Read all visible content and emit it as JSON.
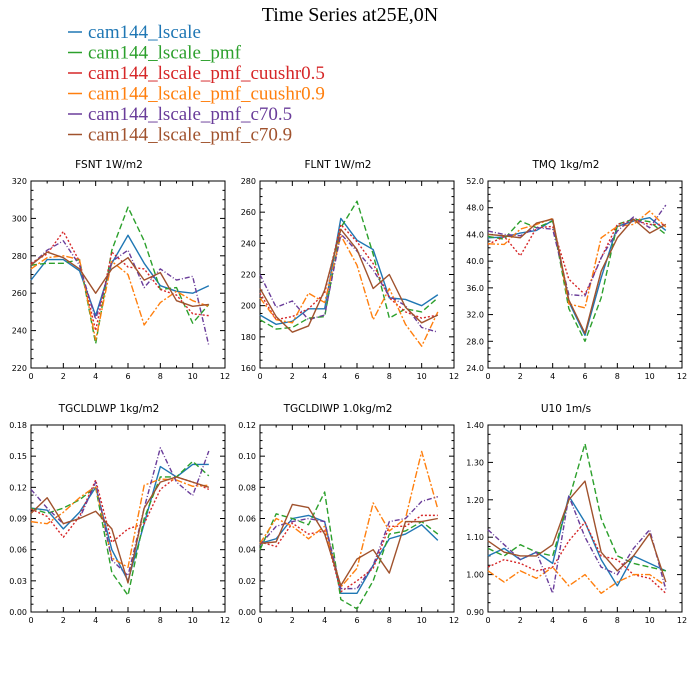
{
  "figure": {
    "title": "Time Series at25E,0N"
  },
  "legend": [
    {
      "name": "cam144_lscale",
      "color": "#1f77b4",
      "dash": "solid"
    },
    {
      "name": "cam144_lscale_pmf",
      "color": "#2ca02c",
      "dash": "dash"
    },
    {
      "name": "cam144_lscale_pmf_cuushr0.5",
      "color": "#d62728",
      "dash": "dot"
    },
    {
      "name": "cam144_lscale_pmf_cuushr0.9",
      "color": "#ff7f0e",
      "dash": "dashdot"
    },
    {
      "name": "cam144_lscale_pmf_c70.5",
      "color": "#6a3d9a",
      "dash": "dashdot2"
    },
    {
      "name": "cam144_lscale_pmf_c70.9",
      "color": "#a0522d",
      "dash": "solid"
    }
  ],
  "chart_data": [
    {
      "type": "line",
      "title": "FSNT   1W/m2",
      "xlim": [
        0,
        12
      ],
      "ylim": [
        220,
        320
      ],
      "x_ticks": [
        "0",
        "2",
        "4",
        "6",
        "8",
        "10",
        "12"
      ],
      "y_ticks": [
        "220",
        "240",
        "260",
        "280",
        "300",
        "320"
      ],
      "x": [
        0,
        1,
        2,
        3,
        4,
        5,
        6,
        7,
        8,
        9,
        10,
        11
      ],
      "series": [
        {
          "name": "cam144_lscale",
          "values": [
            267,
            278,
            278,
            272,
            248,
            276,
            291,
            276,
            264,
            261,
            260,
            264
          ]
        },
        {
          "name": "cam144_lscale_pmf",
          "values": [
            275,
            276,
            276,
            278,
            233,
            283,
            306,
            288,
            262,
            263,
            244,
            254
          ]
        },
        {
          "name": "cam144_lscale_pmf_cuushr0.5",
          "values": [
            276,
            281,
            293,
            277,
            240,
            282,
            274,
            273,
            262,
            259,
            249,
            248
          ]
        },
        {
          "name": "cam144_lscale_pmf_cuushr0.9",
          "values": [
            273,
            279,
            280,
            278,
            235,
            277,
            270,
            243,
            255,
            261,
            256,
            253
          ]
        },
        {
          "name": "cam144_lscale_pmf_c70.5",
          "values": [
            275,
            283,
            288,
            275,
            246,
            277,
            283,
            263,
            273,
            267,
            269,
            232
          ]
        },
        {
          "name": "cam144_lscale_pmf_c70.9",
          "values": [
            275,
            282,
            279,
            273,
            260,
            273,
            279,
            267,
            271,
            256,
            253,
            254
          ]
        }
      ]
    },
    {
      "type": "line",
      "title": "FLNT   1W/m2",
      "xlim": [
        0,
        12
      ],
      "ylim": [
        160,
        280
      ],
      "x_ticks": [
        "0",
        "2",
        "4",
        "6",
        "8",
        "10",
        "12"
      ],
      "y_ticks": [
        "160",
        "180",
        "200",
        "220",
        "240",
        "260",
        "280"
      ],
      "x": [
        0,
        1,
        2,
        3,
        4,
        5,
        6,
        7,
        8,
        9,
        10,
        11
      ],
      "series": [
        {
          "name": "cam144_lscale",
          "values": [
            194,
            188,
            190,
            198,
            198,
            256,
            242,
            236,
            205,
            204,
            200,
            207
          ]
        },
        {
          "name": "cam144_lscale_pmf",
          "values": [
            191,
            185,
            186,
            192,
            193,
            250,
            267,
            233,
            192,
            198,
            196,
            205
          ]
        },
        {
          "name": "cam144_lscale_pmf_cuushr0.5",
          "values": [
            208,
            191,
            193,
            198,
            208,
            252,
            241,
            227,
            205,
            196,
            192,
            194
          ]
        },
        {
          "name": "cam144_lscale_pmf_cuushr0.9",
          "values": [
            205,
            191,
            189,
            208,
            202,
            245,
            226,
            191,
            211,
            188,
            174,
            196
          ]
        },
        {
          "name": "cam144_lscale_pmf_c70.5",
          "values": [
            220,
            199,
            203,
            191,
            194,
            246,
            235,
            223,
            206,
            200,
            186,
            183
          ]
        },
        {
          "name": "cam144_lscale_pmf_c70.9",
          "values": [
            211,
            193,
            183,
            187,
            210,
            249,
            236,
            211,
            220,
            199,
            189,
            194
          ]
        }
      ]
    },
    {
      "type": "line",
      "title": "TMQ   1kg/m2",
      "xlim": [
        0,
        12
      ],
      "ylim": [
        24,
        52
      ],
      "x_ticks": [
        "0",
        "2",
        "4",
        "6",
        "8",
        "10",
        "12"
      ],
      "y_ticks": [
        "24.0",
        "28.0",
        "32.0",
        "36.0",
        "40.0",
        "44.0",
        "48.0",
        "52.0"
      ],
      "x": [
        0,
        1,
        2,
        3,
        4,
        5,
        6,
        7,
        8,
        9,
        10,
        11
      ],
      "series": [
        {
          "name": "cam144_lscale",
          "values": [
            43.5,
            43.6,
            44.2,
            44.6,
            46.1,
            33.9,
            28.9,
            37.5,
            45.2,
            46.0,
            46.5,
            44.6
          ]
        },
        {
          "name": "cam144_lscale_pmf",
          "values": [
            43.7,
            43.3,
            46.0,
            45.0,
            46.0,
            32.9,
            28.0,
            34.5,
            45.5,
            46.3,
            45.9,
            44.0
          ]
        },
        {
          "name": "cam144_lscale_pmf_cuushr0.5",
          "values": [
            42.5,
            43.7,
            40.8,
            45.0,
            45.2,
            37.3,
            35.0,
            40.5,
            45.5,
            46.1,
            45.5,
            45.5
          ]
        },
        {
          "name": "cam144_lscale_pmf_cuushr0.9",
          "values": [
            42.6,
            42.5,
            44.8,
            45.5,
            46.4,
            33.6,
            33.0,
            43.5,
            45.2,
            45.5,
            47.5,
            45.1
          ]
        },
        {
          "name": "cam144_lscale_pmf_c70.5",
          "values": [
            44.5,
            44.0,
            43.8,
            45.0,
            44.8,
            35.0,
            34.8,
            40.5,
            44.5,
            46.6,
            45.0,
            48.4
          ]
        },
        {
          "name": "cam144_lscale_pmf_c70.9",
          "values": [
            44.0,
            43.8,
            43.5,
            45.7,
            46.3,
            34.2,
            29.2,
            38.5,
            43.5,
            46.3,
            44.2,
            45.5
          ]
        }
      ]
    },
    {
      "type": "line",
      "title": "TGCLDLWP   1kg/m2",
      "xlim": [
        0,
        12
      ],
      "ylim": [
        0,
        0.18
      ],
      "x_ticks": [
        "0",
        "2",
        "4",
        "6",
        "8",
        "10",
        "12"
      ],
      "y_ticks": [
        "0.00",
        "0.03",
        "0.06",
        "0.09",
        "0.12",
        "0.15",
        "0.18"
      ],
      "x": [
        0,
        1,
        2,
        3,
        4,
        5,
        6,
        7,
        8,
        9,
        10,
        11
      ],
      "series": [
        {
          "name": "cam144_lscale",
          "values": [
            0.1,
            0.098,
            0.08,
            0.096,
            0.12,
            0.06,
            0.03,
            0.085,
            0.14,
            0.13,
            0.142,
            0.142
          ]
        },
        {
          "name": "cam144_lscale_pmf",
          "values": [
            0.1,
            0.095,
            0.1,
            0.108,
            0.12,
            0.038,
            0.016,
            0.09,
            0.13,
            0.13,
            0.145,
            0.131
          ]
        },
        {
          "name": "cam144_lscale_pmf_cuushr0.5",
          "values": [
            0.099,
            0.092,
            0.072,
            0.092,
            0.127,
            0.067,
            0.08,
            0.085,
            0.118,
            0.13,
            0.125,
            0.118
          ]
        },
        {
          "name": "cam144_lscale_pmf_cuushr0.9",
          "values": [
            0.087,
            0.085,
            0.096,
            0.11,
            0.121,
            0.052,
            0.043,
            0.122,
            0.128,
            0.127,
            0.121,
            0.122
          ]
        },
        {
          "name": "cam144_lscale_pmf_c70.5",
          "values": [
            0.118,
            0.1,
            0.085,
            0.09,
            0.125,
            0.05,
            0.035,
            0.1,
            0.158,
            0.125,
            0.112,
            0.155
          ]
        },
        {
          "name": "cam144_lscale_pmf_c70.9",
          "values": [
            0.095,
            0.11,
            0.085,
            0.09,
            0.097,
            0.08,
            0.028,
            0.1,
            0.125,
            0.13,
            0.125,
            0.12
          ]
        }
      ]
    },
    {
      "type": "line",
      "title": "TGCLDIWP   1.0kg/m2",
      "xlim": [
        0,
        12
      ],
      "ylim": [
        0,
        0.12
      ],
      "x_ticks": [
        "0",
        "2",
        "4",
        "6",
        "8",
        "10",
        "12"
      ],
      "y_ticks": [
        "0.00",
        "0.02",
        "0.04",
        "0.06",
        "0.08",
        "0.10",
        "0.12"
      ],
      "x": [
        0,
        1,
        2,
        3,
        4,
        5,
        6,
        7,
        8,
        9,
        10,
        11
      ],
      "series": [
        {
          "name": "cam144_lscale",
          "values": [
            0.044,
            0.047,
            0.06,
            0.062,
            0.058,
            0.012,
            0.012,
            0.03,
            0.047,
            0.05,
            0.056,
            0.046
          ]
        },
        {
          "name": "cam144_lscale_pmf",
          "values": [
            0.04,
            0.063,
            0.06,
            0.056,
            0.077,
            0.008,
            0.002,
            0.02,
            0.05,
            0.052,
            0.058,
            0.05
          ]
        },
        {
          "name": "cam144_lscale_pmf_cuushr0.5",
          "values": [
            0.045,
            0.042,
            0.057,
            0.05,
            0.052,
            0.013,
            0.02,
            0.028,
            0.055,
            0.055,
            0.062,
            0.062
          ]
        },
        {
          "name": "cam144_lscale_pmf_cuushr0.9",
          "values": [
            0.044,
            0.06,
            0.055,
            0.047,
            0.055,
            0.016,
            0.028,
            0.07,
            0.052,
            0.06,
            0.103,
            0.066
          ]
        },
        {
          "name": "cam144_lscale_pmf_c70.5",
          "values": [
            0.043,
            0.055,
            0.058,
            0.06,
            0.058,
            0.015,
            0.015,
            0.03,
            0.058,
            0.06,
            0.071,
            0.074
          ]
        },
        {
          "name": "cam144_lscale_pmf_c70.9",
          "values": [
            0.044,
            0.045,
            0.069,
            0.067,
            0.05,
            0.017,
            0.034,
            0.04,
            0.025,
            0.058,
            0.058,
            0.06
          ]
        }
      ]
    },
    {
      "type": "line",
      "title": "U10   1m/s",
      "xlim": [
        0,
        12
      ],
      "ylim": [
        0.9,
        1.4
      ],
      "x_ticks": [
        "0",
        "2",
        "4",
        "6",
        "8",
        "10",
        "12"
      ],
      "y_ticks": [
        "0.90",
        "1.00",
        "1.10",
        "1.20",
        "1.30",
        "1.40"
      ],
      "x": [
        0,
        1,
        2,
        3,
        4,
        5,
        6,
        7,
        8,
        9,
        10,
        11
      ],
      "series": [
        {
          "name": "cam144_lscale",
          "values": [
            1.05,
            1.07,
            1.04,
            1.06,
            1.03,
            1.21,
            1.14,
            1.04,
            0.97,
            1.05,
            1.03,
            1.01
          ]
        },
        {
          "name": "cam144_lscale_pmf",
          "values": [
            1.07,
            1.05,
            1.08,
            1.06,
            1.05,
            1.2,
            1.35,
            1.15,
            1.05,
            1.03,
            1.02,
            1.01
          ]
        },
        {
          "name": "cam144_lscale_pmf_cuushr0.5",
          "values": [
            1.02,
            1.04,
            1.03,
            1.01,
            1.02,
            1.09,
            1.14,
            1.05,
            1.04,
            1.0,
            0.99,
            0.95
          ]
        },
        {
          "name": "cam144_lscale_pmf_cuushr0.9",
          "values": [
            1.01,
            0.98,
            1.01,
            0.99,
            1.02,
            0.97,
            1.0,
            0.95,
            0.98,
            1.0,
            1.0,
            0.97
          ]
        },
        {
          "name": "cam144_lscale_pmf_c70.5",
          "values": [
            1.12,
            1.08,
            1.04,
            1.06,
            0.95,
            1.21,
            1.1,
            1.02,
            1.0,
            1.07,
            1.12,
            0.96
          ]
        },
        {
          "name": "cam144_lscale_pmf_c70.9",
          "values": [
            1.09,
            1.06,
            1.05,
            1.05,
            1.08,
            1.2,
            1.25,
            1.06,
            1.01,
            1.05,
            1.11,
            0.98
          ]
        }
      ]
    }
  ]
}
